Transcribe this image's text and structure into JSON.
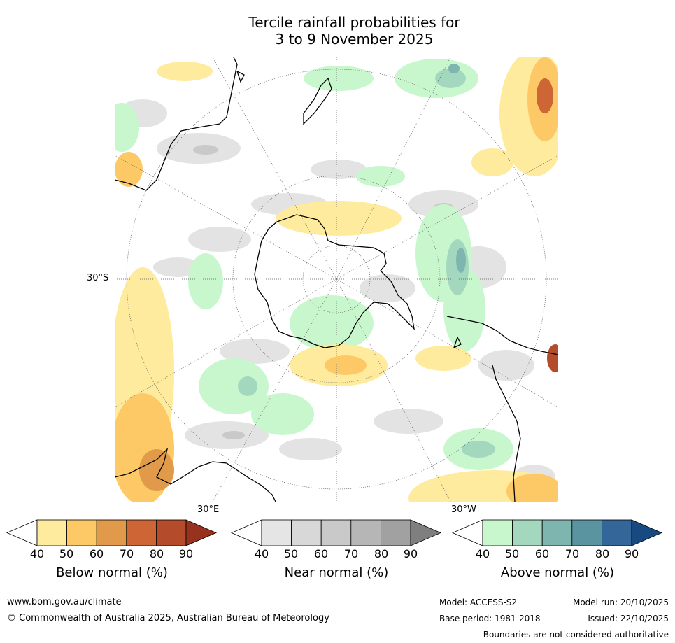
{
  "title": {
    "line1": "Tercile rainfall probabilities for",
    "line2": "3 to 9 November 2025"
  },
  "map": {
    "projection": "south polar stereographic",
    "lat_label": "30°S",
    "lon_label_left": "30°E",
    "lon_label_right": "30°W"
  },
  "colorbars": [
    {
      "label": "Below normal (%)",
      "ticks": [
        "40",
        "50",
        "60",
        "70",
        "80",
        "90"
      ],
      "colors": [
        "#ffffff",
        "#feeb9d",
        "#fdc966",
        "#e09a4a",
        "#cd6534",
        "#b44b2a",
        "#96321e"
      ]
    },
    {
      "label": "Near normal (%)",
      "ticks": [
        "40",
        "50",
        "60",
        "70",
        "80",
        "90"
      ],
      "colors": [
        "#ffffff",
        "#e5e5e5",
        "#d8d8d8",
        "#c9c9c9",
        "#b6b6b6",
        "#a1a1a1",
        "#7f7f7f"
      ]
    },
    {
      "label": "Above normal (%)",
      "ticks": [
        "40",
        "50",
        "60",
        "70",
        "80",
        "90"
      ],
      "colors": [
        "#ffffff",
        "#c8f7cd",
        "#a3d8bf",
        "#7eb6af",
        "#5a94a1",
        "#35669a",
        "#174a80"
      ]
    }
  ],
  "footer": {
    "url": "www.bom.gov.au/climate",
    "copyright": "© Commonwealth of Australia 2025, Australian Bureau of Meteorology",
    "model": "Model: ACCESS-S2",
    "base_period": "Base period: 1981-2018",
    "model_run": "Model run: 20/10/2025",
    "issued": "Issued: 22/10/2025",
    "disclaimer": "Boundaries are not considered authoritative"
  }
}
